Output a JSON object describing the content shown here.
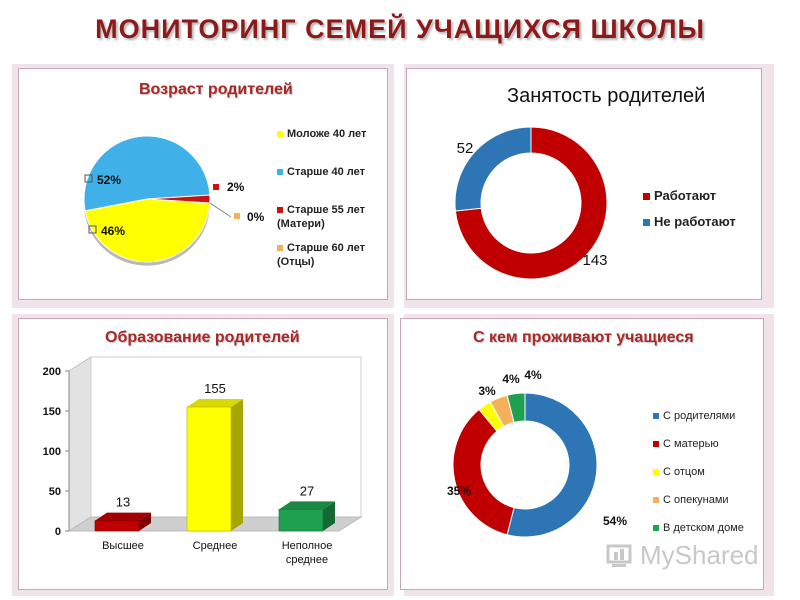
{
  "slide": {
    "title": "МОНИТОРИНГ СЕМЕЙ УЧАЩИХСЯ ШКОЛЫ"
  },
  "watermark": {
    "text": "MyShared"
  },
  "chart_data": [
    {
      "type": "pie",
      "title": "Возраст родителей",
      "categories": [
        "Моложе 40 лет",
        "Старше 40 лет",
        "Старше 55 лет (Матери)",
        "Старше 60 лет (Отцы)"
      ],
      "values": [
        46,
        52,
        2,
        0
      ],
      "labels": [
        "46%",
        "52%",
        "2%",
        "0%"
      ],
      "colors": [
        "#ffff00",
        "#3fb0e8",
        "#cc1111",
        "#f4b05a"
      ],
      "legend": "right"
    },
    {
      "type": "pie",
      "title": "Занятость родителей",
      "categories": [
        "Работают",
        "Не работают"
      ],
      "values": [
        143,
        52
      ],
      "labels": [
        "143",
        "52"
      ],
      "colors": [
        "#c00000",
        "#2e75b6"
      ],
      "legend": "right"
    },
    {
      "type": "bar",
      "title": "Образование родителей",
      "categories": [
        "Высшее",
        "Среднее",
        "Неполное среднее"
      ],
      "values": [
        13,
        155,
        27
      ],
      "colors": [
        "#c00000",
        "#ffff00",
        "#1fa050"
      ],
      "ylim": [
        0,
        200
      ],
      "yticks": [
        0,
        50,
        100,
        150,
        200
      ],
      "ytick_labels": [
        "0",
        "50",
        "100",
        "150",
        "200"
      ],
      "grid": false,
      "legend": "none"
    },
    {
      "type": "pie",
      "title": "С кем проживают учащиеся",
      "categories": [
        "С родителями",
        "С матерью",
        "С отцом",
        "С опекунами",
        "В детском доме"
      ],
      "values": [
        54,
        35,
        3,
        4,
        4
      ],
      "labels": [
        "54%",
        "35%",
        "3%",
        "4%",
        "4%"
      ],
      "colors": [
        "#2e75b6",
        "#c00000",
        "#ffff00",
        "#f4b05a",
        "#1fa050"
      ],
      "legend": "right"
    }
  ]
}
